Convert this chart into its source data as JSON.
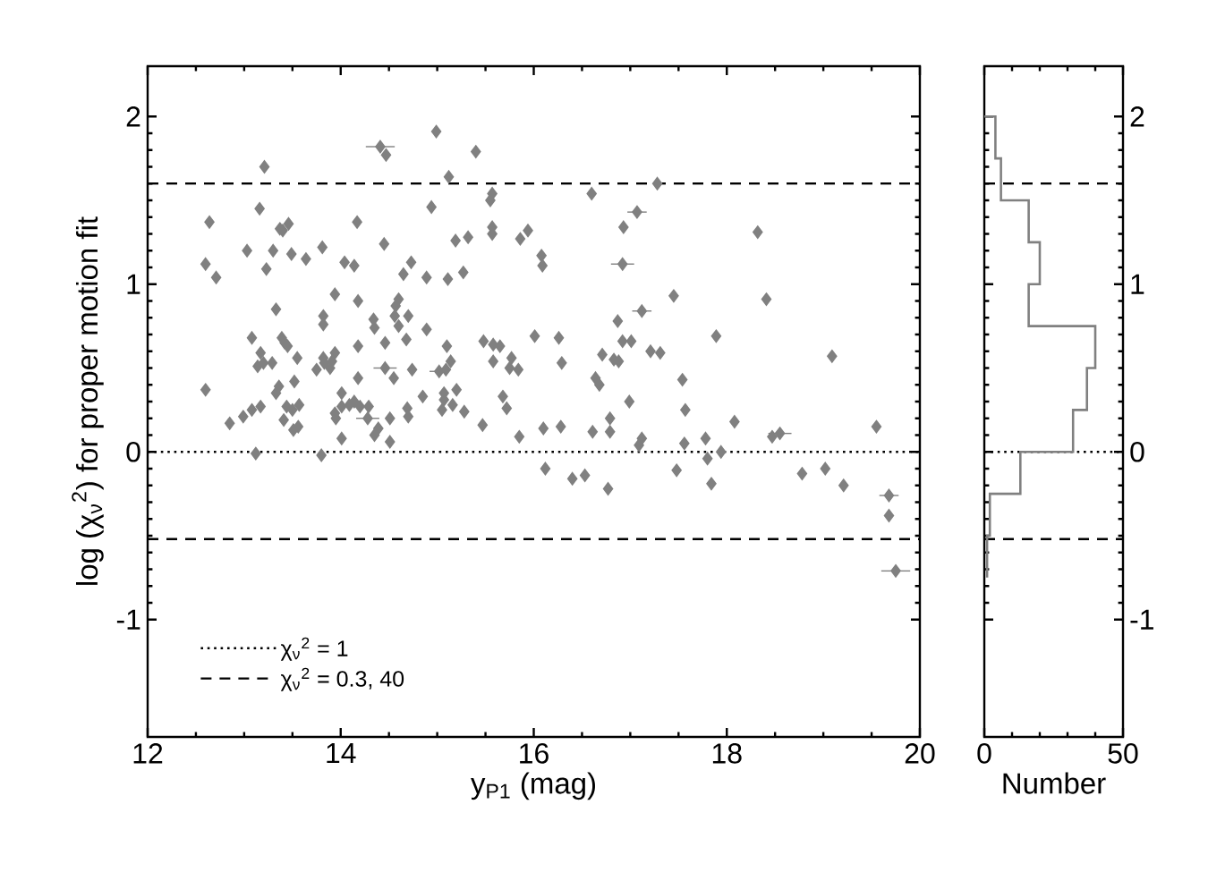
{
  "chart_data": [
    {
      "type": "scatter",
      "xlabel": "y$_{P1}$ (mag)",
      "ylabel": "log (χ$_{ν}$$^{2}$) for proper motion fit",
      "xlim": [
        12,
        20
      ],
      "ylim": [
        -1.7,
        2.3
      ],
      "xticks": [
        12,
        14,
        16,
        18,
        20
      ],
      "yticks": [
        -1,
        0,
        1,
        2
      ],
      "marker": "diamond",
      "legend": "bottom left",
      "series": [
        {
          "type": "line",
          "name": "χ$_{ν}$$^{2}$ = 1",
          "color": "#000000",
          "line_style": "dotted",
          "marker": "none",
          "x": [
            12,
            20
          ],
          "values": [
            0,
            0
          ]
        },
        {
          "type": "line",
          "name": "χ$_{ν}$$^{2}$ = 0.3, 40",
          "color": "#000000",
          "line_style": "dashed",
          "marker": "none",
          "x": [
            12,
            20
          ],
          "values": [
            -0.52,
            -0.52
          ]
        },
        {
          "type": "line",
          "color": "#000000",
          "line_style": "dashed",
          "marker": "none",
          "x": [
            12,
            20
          ],
          "values": [
            1.6,
            1.6
          ]
        },
        {
          "color": "#808080",
          "x": [
            14.47,
            13.21,
            13.16,
            12.64,
            13.37,
            13.4,
            13.46,
            14.17,
            13.81,
            14.45,
            13.03,
            13.3,
            13.49,
            13.64,
            12.6,
            14.04,
            14.14,
            14.73,
            12.71,
            13.23,
            14.65,
            13.94,
            14.18,
            14.6,
            14.57,
            14.56,
            14.6,
            14.7,
            13.33,
            13.82,
            13.82,
            14.34,
            14.35,
            13.08,
            13.39,
            13.42,
            13.45,
            14.18,
            14.46,
            14.68,
            13.17,
            13.14,
            13.2,
            13.29,
            13.55,
            13.75,
            13.82,
            13.83,
            13.91,
            13.94,
            13.89,
            14.55,
            14.74,
            14.18,
            12.6,
            13.36,
            13.33,
            13.52,
            14.01,
            12.85,
            12.99,
            13.08,
            13.17,
            13.44,
            13.5,
            13.57,
            13.41,
            13.51,
            13.56,
            13.94,
            13.95,
            14.01,
            14.09,
            14.14,
            14.2,
            14.29,
            14.51,
            14.69,
            14.7,
            14.35,
            14.39,
            14.01,
            14.51,
            13.12,
            13.8,
            14.99,
            15.4,
            15.12,
            15.57,
            15.55,
            14.94,
            15.57,
            15.57,
            15.19,
            15.32,
            15.86,
            15.94,
            16.08,
            16.09,
            14.89,
            15.11,
            15.27,
            14.89,
            15.1,
            15.14,
            15.09,
            14.85,
            15.07,
            15.07,
            15.05,
            15.16,
            15.2,
            15.28,
            15.48,
            15.58,
            15.65,
            15.58,
            15.77,
            15.75,
            15.84,
            15.68,
            15.72,
            16.01,
            16.26,
            16.29,
            15.47,
            15.85,
            16.1,
            16.28,
            16.12,
            16.6,
            17.28,
            16.93,
            18.32,
            17.45,
            18.41,
            16.87,
            16.92,
            17.01,
            17.89,
            16.71,
            16.83,
            16.88,
            17.21,
            17.31,
            19.09,
            16.64,
            16.68,
            17.54,
            16.99,
            17.57,
            16.79,
            18.08,
            16.61,
            16.79,
            19.55,
            17.12,
            17.09,
            17.56,
            17.78,
            18.47,
            17.94,
            17.8,
            16.4,
            16.53,
            16.77,
            17.48,
            17.84,
            18.78,
            19.02,
            19.21,
            19.68
          ],
          "values": [
            1.77,
            1.7,
            1.45,
            1.37,
            1.33,
            1.32,
            1.36,
            1.37,
            1.22,
            1.24,
            1.2,
            1.2,
            1.18,
            1.15,
            1.12,
            1.13,
            1.11,
            1.13,
            1.04,
            1.09,
            1.06,
            0.94,
            0.9,
            0.91,
            0.87,
            0.81,
            0.75,
            0.81,
            0.85,
            0.81,
            0.76,
            0.79,
            0.74,
            0.68,
            0.68,
            0.65,
            0.63,
            0.63,
            0.65,
            0.67,
            0.59,
            0.51,
            0.53,
            0.53,
            0.56,
            0.49,
            0.56,
            0.53,
            0.54,
            0.59,
            0.5,
            0.44,
            0.49,
            0.44,
            0.37,
            0.39,
            0.35,
            0.42,
            0.35,
            0.17,
            0.21,
            0.25,
            0.27,
            0.27,
            0.25,
            0.28,
            0.19,
            0.13,
            0.15,
            0.23,
            0.2,
            0.27,
            0.28,
            0.3,
            0.27,
            0.27,
            0.2,
            0.26,
            0.21,
            0.1,
            0.14,
            0.08,
            0.06,
            -0.01,
            -0.02,
            1.91,
            1.79,
            1.64,
            1.54,
            1.5,
            1.46,
            1.34,
            1.3,
            1.26,
            1.28,
            1.27,
            1.32,
            1.17,
            1.11,
            1.04,
            1.03,
            1.07,
            0.73,
            0.63,
            0.54,
            0.49,
            0.33,
            0.35,
            0.31,
            0.25,
            0.28,
            0.37,
            0.24,
            0.66,
            0.64,
            0.63,
            0.54,
            0.56,
            0.5,
            0.49,
            0.33,
            0.26,
            0.69,
            0.68,
            0.53,
            0.16,
            0.09,
            0.14,
            0.15,
            -0.1,
            1.54,
            1.6,
            1.34,
            1.31,
            0.93,
            0.91,
            0.78,
            0.66,
            0.66,
            0.69,
            0.58,
            0.55,
            0.54,
            0.6,
            0.59,
            0.57,
            0.44,
            0.4,
            0.43,
            0.3,
            0.25,
            0.2,
            0.18,
            0.12,
            0.12,
            0.15,
            0.08,
            0.04,
            0.05,
            0.08,
            0.09,
            0.0,
            -0.04,
            -0.16,
            -0.14,
            -0.22,
            -0.11,
            -0.19,
            -0.13,
            -0.1,
            -0.2,
            -0.38
          ]
        },
        {
          "color": "#808080",
          "x": [
            14.41,
            14.46,
            14.28,
            15.02,
            17.07,
            16.92,
            17.12,
            18.55,
            19.68,
            19.75
          ],
          "values": [
            1.82,
            0.5,
            0.2,
            0.48,
            1.43,
            1.12,
            0.84,
            0.11,
            -0.26,
            -0.71
          ],
          "xerrors": [
            0.15,
            0.12,
            0.12,
            0.1,
            0.1,
            0.12,
            0.1,
            0.12,
            0.1,
            0.15
          ]
        }
      ]
    },
    {
      "type": "histogram",
      "orientation": "horizontal",
      "xlabel": "Number",
      "xlim": [
        0,
        50
      ],
      "xticks": [
        0,
        50
      ],
      "ylim": [
        -1.7,
        2.3
      ],
      "yticks": [
        -1,
        0,
        1,
        2
      ],
      "color": "#808080",
      "bins": [
        -0.75,
        -0.5,
        -0.25,
        0,
        0.25,
        0.5,
        0.75,
        1.0,
        1.25,
        1.5,
        1.75,
        2.0
      ],
      "values": [
        1,
        2,
        13,
        32,
        37,
        40,
        16,
        20,
        16,
        6,
        4
      ],
      "ref_lines": [
        {
          "axis": "y",
          "value": 0,
          "color": "#000000",
          "line_style": "dotted"
        },
        {
          "axis": "y",
          "value": -0.52,
          "color": "#000000",
          "line_style": "dashed"
        },
        {
          "axis": "y",
          "value": 1.6,
          "color": "#000000",
          "line_style": "dashed"
        }
      ]
    }
  ]
}
